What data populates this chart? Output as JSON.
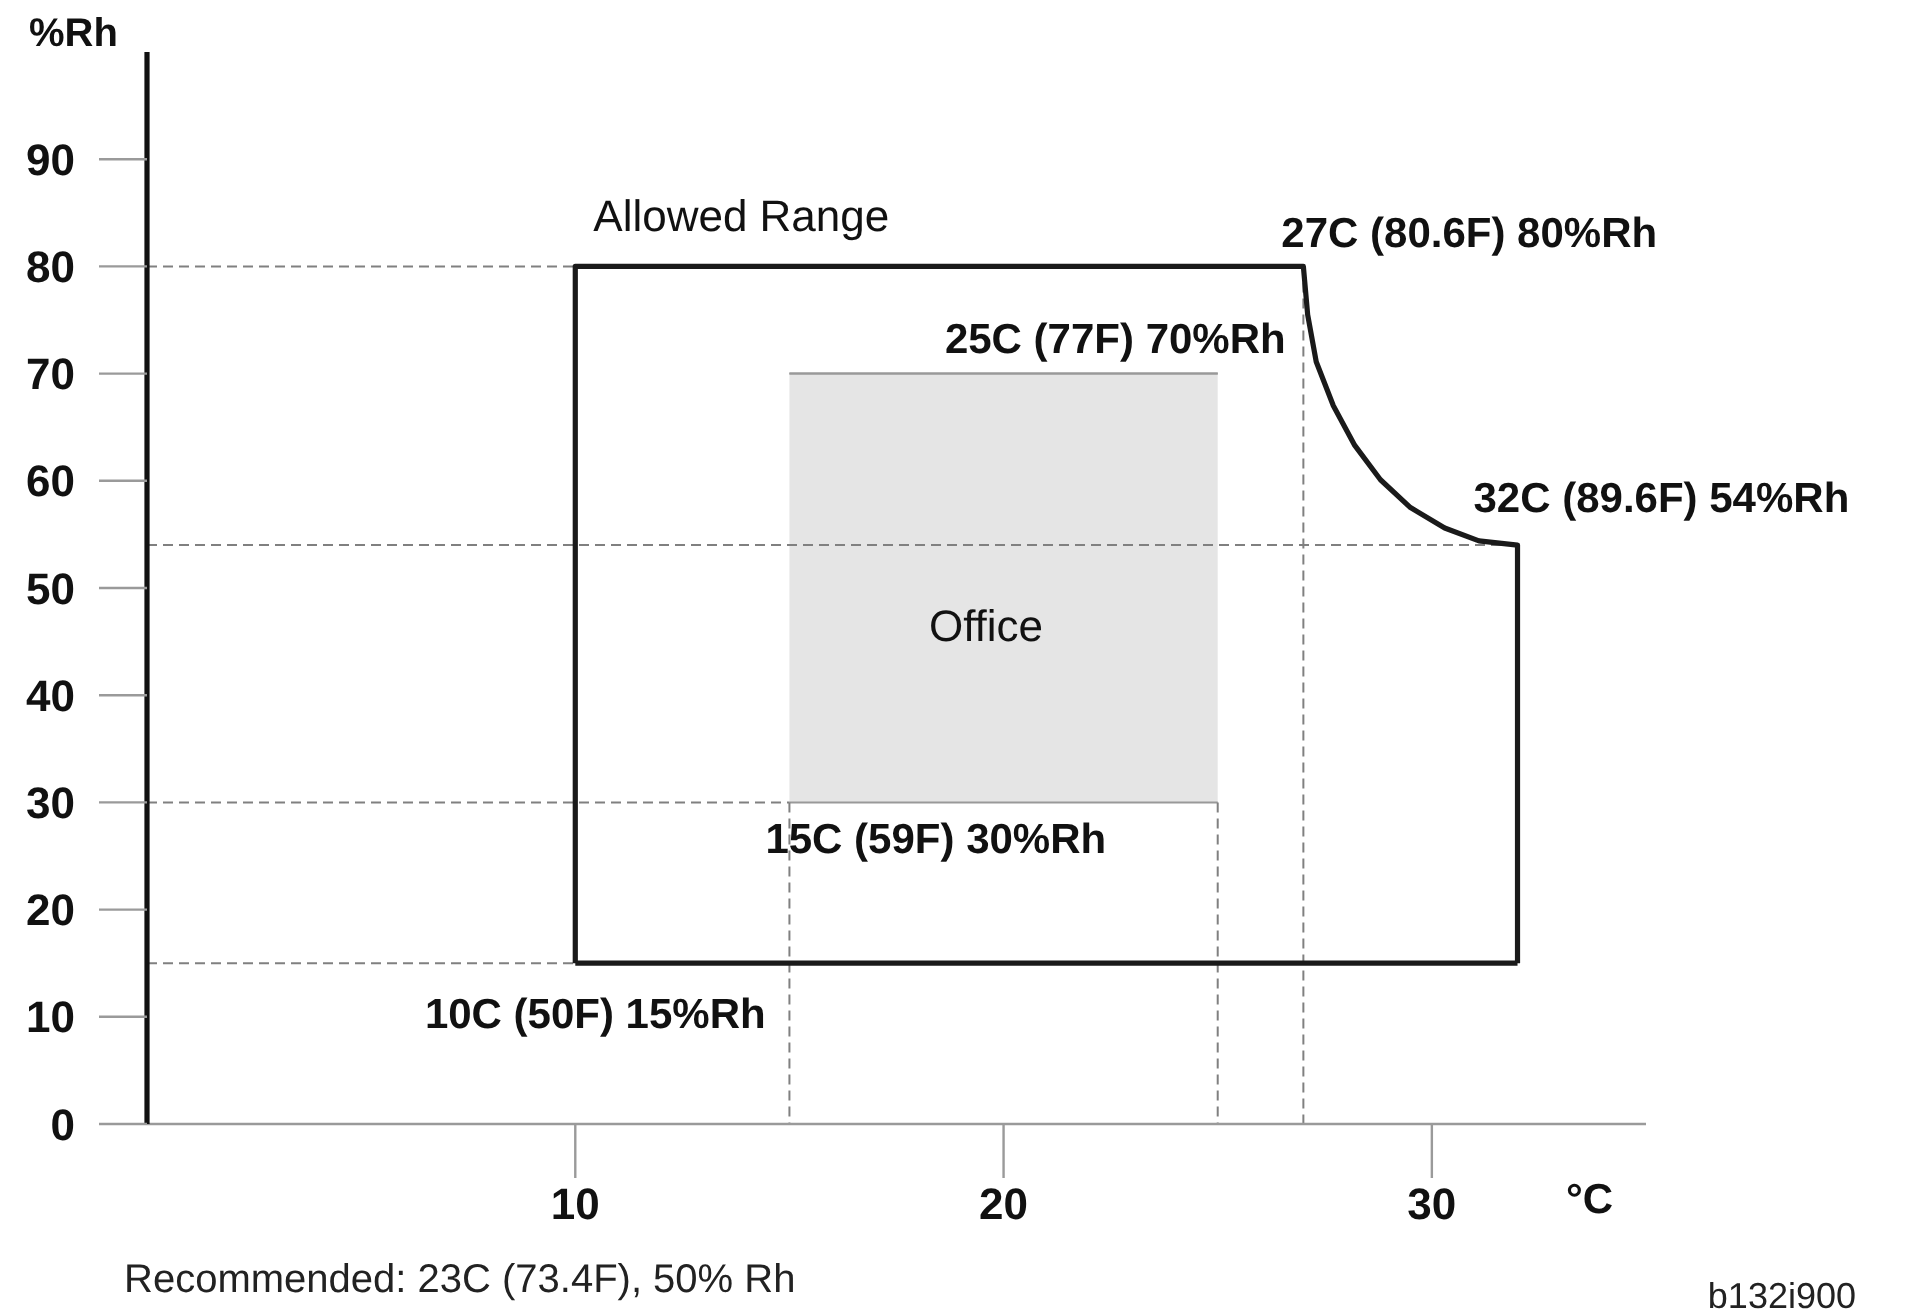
{
  "chart_data": {
    "type": "line",
    "xlabel": "°C",
    "ylabel": "%Rh",
    "xlim": [
      0,
      35
    ],
    "xticks": [
      10,
      20,
      30
    ],
    "ylim": [
      0,
      100
    ],
    "yticks": [
      0,
      10,
      20,
      30,
      40,
      50,
      60,
      70,
      80,
      90
    ],
    "marker": "none",
    "series": [
      {
        "color": "#999999",
        "line_style": "solid",
        "x": [
          15,
          25
        ],
        "values": [
          70,
          70
        ],
        "lower": [
          30,
          30
        ],
        "upper": [
          70,
          70
        ]
      },
      {
        "color": "#808080",
        "line_style": "dashed",
        "x": [
          0,
          10
        ],
        "values": [
          80,
          80
        ]
      },
      {
        "color": "#808080",
        "line_style": "dashed",
        "x": [
          0,
          32
        ],
        "values": [
          54,
          54
        ]
      },
      {
        "color": "#808080",
        "line_style": "dashed",
        "x": [
          0,
          15
        ],
        "values": [
          30,
          30
        ]
      },
      {
        "color": "#808080",
        "line_style": "dashed",
        "x": [
          0,
          10
        ],
        "values": [
          15,
          15
        ]
      },
      {
        "color": "#808080",
        "line_style": "dashed",
        "x": [
          15,
          15
        ],
        "values": [
          30,
          0
        ]
      },
      {
        "color": "#808080",
        "line_style": "dashed",
        "x": [
          25,
          25
        ],
        "values": [
          30,
          0
        ]
      },
      {
        "color": "#808080",
        "line_style": "dashed",
        "x": [
          27,
          27
        ],
        "values": [
          80,
          0
        ]
      },
      {
        "name": "Allowed Range",
        "color": "#1a1a1a",
        "line_style": "solid",
        "x": [
          10,
          10,
          27,
          27.1,
          27.3,
          27.7,
          28.2,
          28.8,
          29.5,
          30.3,
          31.1,
          32,
          32
        ],
        "values": [
          15,
          80,
          80,
          75.5,
          71.1,
          67,
          63.3,
          60.1,
          57.5,
          55.6,
          54.4,
          54,
          15
        ]
      },
      {
        "color": "#1a1a1a",
        "line_style": "solid",
        "x": [
          10,
          32
        ],
        "values": [
          15,
          15
        ]
      }
    ],
    "annotations": [
      {
        "text": "27C (80.6F) 80%Rh",
        "x": 27,
        "y": 80
      },
      {
        "text": "25C (77F) 70%Rh",
        "x": 25,
        "y": 70
      },
      {
        "text": "32C (89.6F) 54%Rh",
        "x": 32,
        "y": 54
      },
      {
        "text": "15C (59F) 30%Rh",
        "x": 15,
        "y": 30
      },
      {
        "text": "10C (50F) 15%Rh",
        "x": 10,
        "y": 15
      },
      "Office",
      "Recommended: 23C (73.4F), 50% Rh",
      "b132i900"
    ]
  }
}
